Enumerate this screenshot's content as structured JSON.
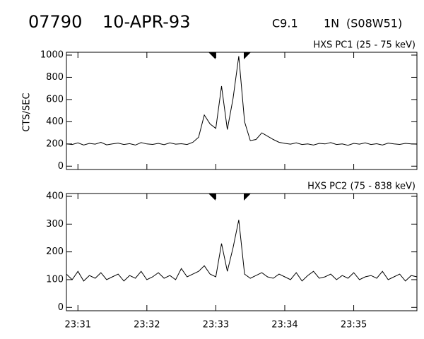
{
  "header": {
    "id": "07790",
    "date": "10-APR-93",
    "class": "C9.1",
    "importance": "1N",
    "location": "(S08W51)"
  },
  "chart_data": [
    {
      "type": "line",
      "title": "HXS PC1 (25 - 75 keV)",
      "y_label": "CTS/SEC",
      "color": "#000000",
      "x": [
        84650,
        84655,
        84660,
        84665,
        84670,
        84675,
        84680,
        84685,
        84690,
        84695,
        84700,
        84705,
        84710,
        84715,
        84720,
        84725,
        84730,
        84735,
        84740,
        84745,
        84750,
        84755,
        84760,
        84765,
        84770,
        84775,
        84780,
        84785,
        84790,
        84795,
        84800,
        84805,
        84810,
        84815,
        84820,
        84825,
        84830,
        84835,
        84840,
        84845,
        84850,
        84855,
        84860,
        84865,
        84870,
        84875,
        84880,
        84885,
        84890,
        84895,
        84900,
        84905,
        84910,
        84915,
        84920,
        84925,
        84930,
        84935,
        84940,
        84945,
        84950,
        84955
      ],
      "values": [
        200,
        195,
        210,
        190,
        205,
        198,
        215,
        192,
        200,
        208,
        195,
        203,
        190,
        212,
        200,
        196,
        205,
        193,
        210,
        198,
        202,
        195,
        215,
        260,
        460,
        380,
        340,
        720,
        330,
        610,
        990,
        400,
        230,
        240,
        300,
        270,
        240,
        215,
        205,
        198,
        210,
        195,
        200,
        190,
        205,
        200,
        212,
        195,
        200,
        188,
        205,
        198,
        210,
        195,
        202,
        190,
        208,
        200,
        196,
        205,
        200,
        198
      ],
      "xlim": [
        84650,
        84955
      ],
      "xticks": [
        84660,
        84720,
        84780,
        84840,
        84900
      ],
      "ylim": [
        -30,
        1000
      ],
      "yticks": [
        0,
        200,
        400,
        600,
        800,
        1000
      ]
    },
    {
      "type": "line",
      "title": "HXS PC2 (75 - 838 keV)",
      "color": "#000000",
      "x": [
        84650,
        84655,
        84660,
        84665,
        84670,
        84675,
        84680,
        84685,
        84690,
        84695,
        84700,
        84705,
        84710,
        84715,
        84720,
        84725,
        84730,
        84735,
        84740,
        84745,
        84750,
        84755,
        84760,
        84765,
        84770,
        84775,
        84780,
        84785,
        84790,
        84795,
        84800,
        84805,
        84810,
        84815,
        84820,
        84825,
        84830,
        84835,
        84840,
        84845,
        84850,
        84855,
        84860,
        84865,
        84870,
        84875,
        84880,
        84885,
        84890,
        84895,
        84900,
        84905,
        84910,
        84915,
        84920,
        84925,
        84930,
        84935,
        84940,
        84945,
        84950,
        84955
      ],
      "values": [
        120,
        100,
        130,
        95,
        115,
        105,
        125,
        100,
        110,
        120,
        95,
        115,
        105,
        130,
        100,
        110,
        125,
        105,
        115,
        100,
        140,
        110,
        120,
        130,
        150,
        120,
        110,
        230,
        130,
        215,
        315,
        120,
        105,
        115,
        125,
        110,
        105,
        120,
        110,
        100,
        125,
        95,
        115,
        130,
        105,
        110,
        120,
        100,
        115,
        105,
        125,
        100,
        110,
        115,
        105,
        130,
        100,
        110,
        120,
        95,
        115,
        110
      ],
      "xlim": [
        84650,
        84955
      ],
      "xticks": [
        {
          "value": 84660,
          "label": "23:31"
        },
        {
          "value": 84720,
          "label": "23:32"
        },
        {
          "value": 84780,
          "label": "23:33"
        },
        {
          "value": 84840,
          "label": "23:34"
        },
        {
          "value": 84900,
          "label": "23:35"
        }
      ],
      "ylim": [
        -12,
        400
      ],
      "yticks": [
        0,
        100,
        200,
        300,
        400
      ]
    }
  ]
}
